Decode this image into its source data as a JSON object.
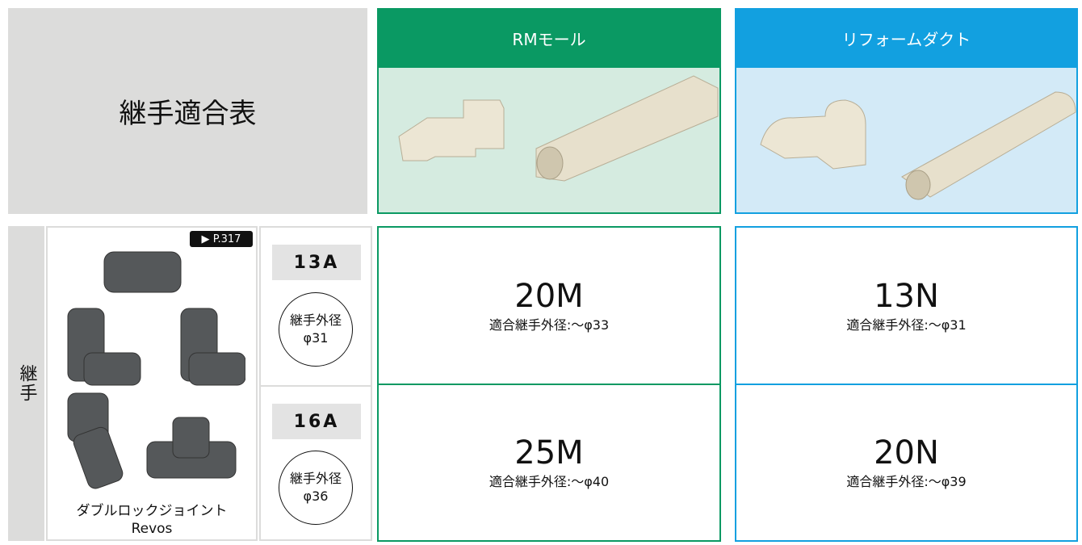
{
  "header": {
    "title": "継手適合表"
  },
  "columns": [
    {
      "name": "RMモール"
    },
    {
      "name": "リフォームダクト"
    }
  ],
  "row_group": {
    "label": "継手",
    "product": {
      "page_ref": "P.317",
      "name": "ダブルロックジョイント",
      "model": "Revos"
    },
    "rows": [
      {
        "size": "13A",
        "diameter_label": "継手外径",
        "diameter": "φ31",
        "cells": [
          {
            "code": "20M",
            "fit": "適合継手外径:〜φ33"
          },
          {
            "code": "13N",
            "fit": "適合継手外径:〜φ31"
          }
        ]
      },
      {
        "size": "16A",
        "diameter_label": "継手外径",
        "diameter": "φ36",
        "cells": [
          {
            "code": "25M",
            "fit": "適合継手外径:〜φ40"
          },
          {
            "code": "20N",
            "fit": "適合継手外径:〜φ39"
          }
        ]
      }
    ]
  }
}
